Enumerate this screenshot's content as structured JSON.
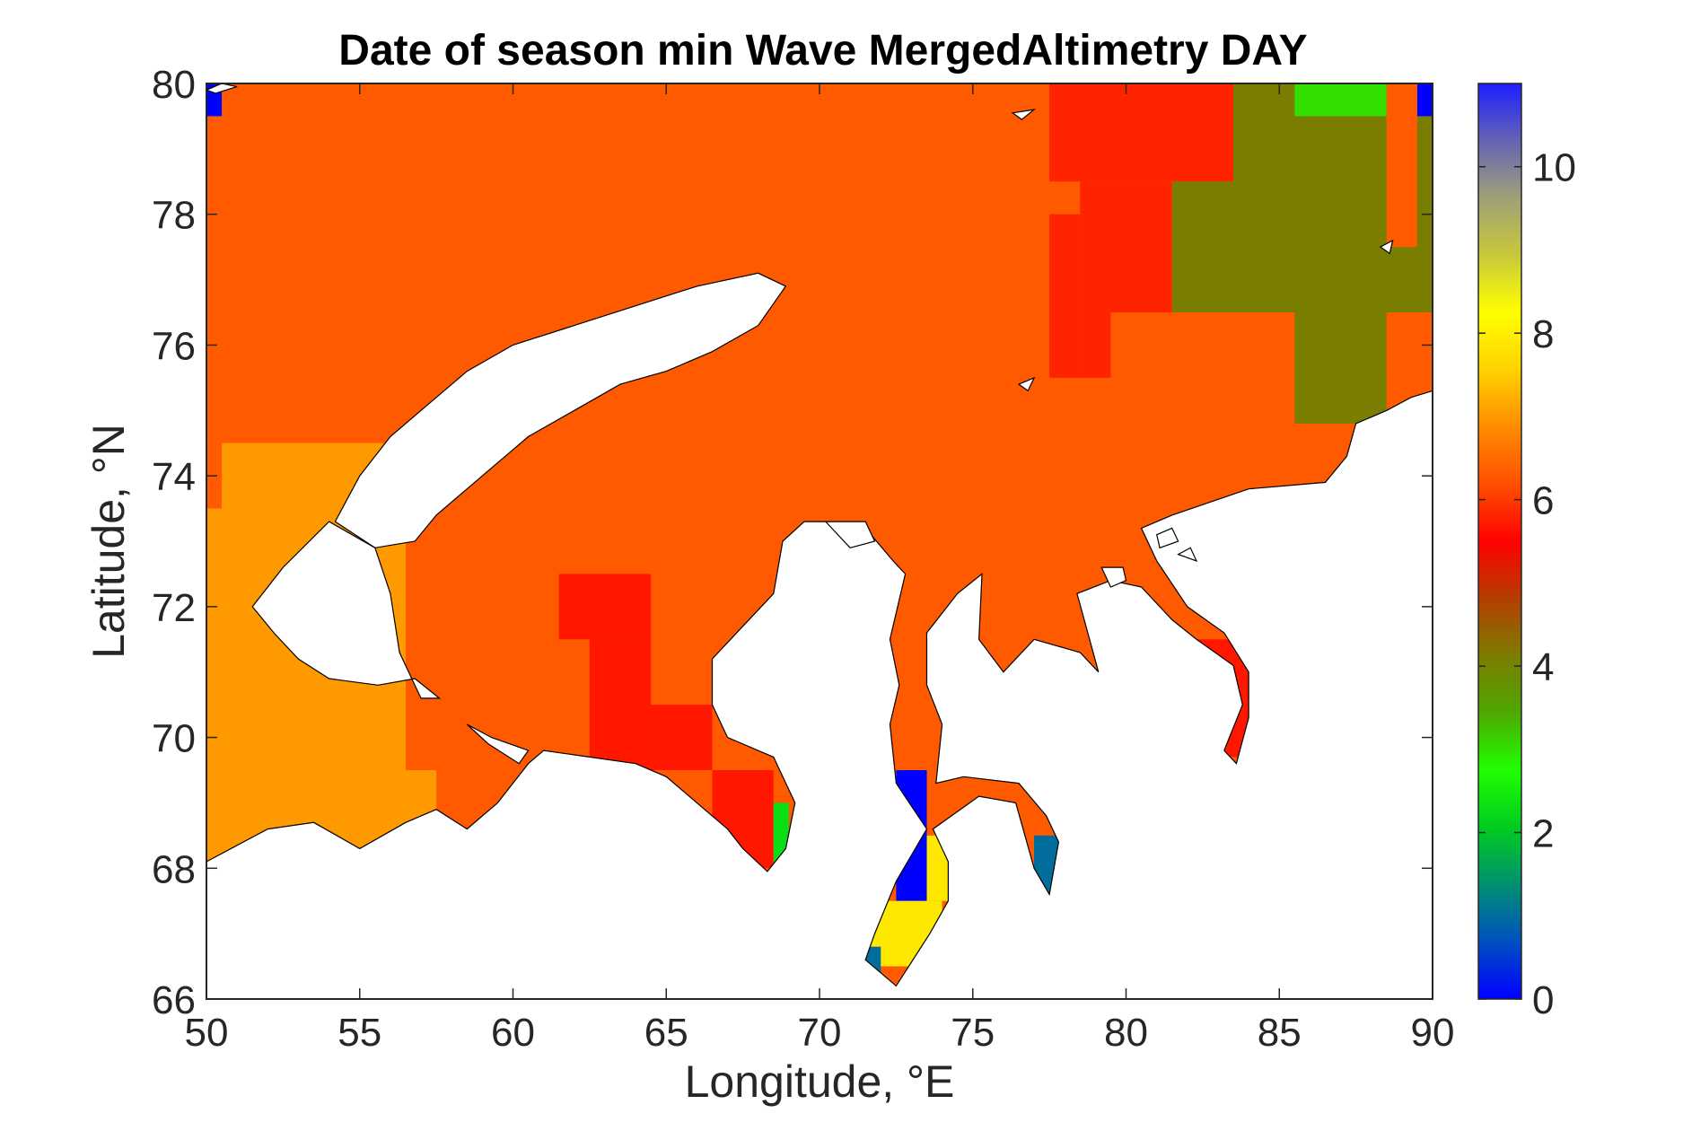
{
  "chart_data": {
    "type": "heatmap",
    "title": "Date of season min Wave MergedAltimetry DAY",
    "xlabel": "Longitude, °E",
    "ylabel": "Latitude, °N",
    "xlim": [
      50,
      90
    ],
    "ylim": [
      66,
      80
    ],
    "x_ticks": [
      "50",
      "55",
      "60",
      "65",
      "70",
      "75",
      "80",
      "85",
      "90"
    ],
    "y_ticks": [
      "66",
      "68",
      "70",
      "72",
      "74",
      "76",
      "78",
      "80"
    ],
    "colorbar": {
      "range": [
        0,
        11
      ],
      "ticks": [
        "0",
        "2",
        "4",
        "6",
        "8",
        "10"
      ],
      "colormap": [
        "#0000ff",
        "#0050c0",
        "#009070",
        "#00cc20",
        "#20ff00",
        "#4ea800",
        "#7c7c00",
        "#b43e00",
        "#ff0000",
        "#ff5000",
        "#ff8c00",
        "#ffd200",
        "#ffff00",
        "#c8c83c",
        "#a0a078",
        "#6464b4",
        "#1e1eff"
      ]
    },
    "land_color": "#ffffff",
    "cells": [
      {
        "lon": [
          50.0,
          90.0
        ],
        "lat": [
          66.0,
          80.0
        ],
        "value": 6.3
      },
      {
        "lon": [
          50.0,
          56.5
        ],
        "lat": [
          66.0,
          74.5
        ],
        "value": 7.0
      },
      {
        "lon": [
          56.5,
          57.5
        ],
        "lat": [
          66.0,
          69.5
        ],
        "value": 7.0
      },
      {
        "lon": [
          50.0,
          50.5
        ],
        "lat": [
          73.5,
          74.5
        ],
        "value": 6.3
      },
      {
        "lon": [
          50.0,
          50.5
        ],
        "lat": [
          79.5,
          80.0
        ],
        "value": 0
      },
      {
        "lon": [
          61.5,
          64.5
        ],
        "lat": [
          71.5,
          72.5
        ],
        "value": 5.7
      },
      {
        "lon": [
          62.5,
          64.5
        ],
        "lat": [
          69.5,
          71.5
        ],
        "value": 5.7
      },
      {
        "lon": [
          64.5,
          66.5
        ],
        "lat": [
          69.5,
          70.5
        ],
        "value": 5.7
      },
      {
        "lon": [
          66.5,
          68.5
        ],
        "lat": [
          68.0,
          69.5
        ],
        "value": 5.7
      },
      {
        "lon": [
          68.5,
          69.0
        ],
        "lat": [
          68.0,
          69.0
        ],
        "value": 2.3
      },
      {
        "lon": [
          77.5,
          83.5
        ],
        "lat": [
          78.5,
          80.0
        ],
        "value": 5.8
      },
      {
        "lon": [
          78.5,
          81.5
        ],
        "lat": [
          76.5,
          78.5
        ],
        "value": 5.8
      },
      {
        "lon": [
          77.5,
          78.5
        ],
        "lat": [
          75.5,
          78.0
        ],
        "value": 5.8
      },
      {
        "lon": [
          78.5,
          79.5
        ],
        "lat": [
          75.5,
          76.5
        ],
        "value": 5.8
      },
      {
        "lon": [
          83.5,
          90.0
        ],
        "lat": [
          76.5,
          80.0
        ],
        "value": 4.1
      },
      {
        "lon": [
          81.5,
          83.5
        ],
        "lat": [
          76.5,
          78.5
        ],
        "value": 4.1
      },
      {
        "lon": [
          85.5,
          88.5
        ],
        "lat": [
          74.8,
          76.5
        ],
        "value": 4.1
      },
      {
        "lon": [
          85.5,
          88.5
        ],
        "lat": [
          79.5,
          80.0
        ],
        "value": 3.0
      },
      {
        "lon": [
          89.5,
          90.0
        ],
        "lat": [
          79.5,
          80.0
        ],
        "value": 0
      },
      {
        "lon": [
          88.5,
          89.5
        ],
        "lat": [
          77.5,
          80.0
        ],
        "value": 6.3
      },
      {
        "lon": [
          88.5,
          90.0
        ],
        "lat": [
          75.5,
          76.5
        ],
        "value": 6.3
      },
      {
        "lon": [
          72.5,
          73.5
        ],
        "lat": [
          68.5,
          69.5
        ],
        "value": 0
      },
      {
        "lon": [
          72.5,
          73.5
        ],
        "lat": [
          67.5,
          68.5
        ],
        "value": 0
      },
      {
        "lon": [
          73.5,
          74.5
        ],
        "lat": [
          67.5,
          68.5
        ],
        "value": 7.9
      },
      {
        "lon": [
          71.5,
          74.0
        ],
        "lat": [
          66.5,
          67.5
        ],
        "value": 7.9
      },
      {
        "lon": [
          69.5,
          72.0
        ],
        "lat": [
          66.2,
          66.8
        ],
        "value": 1.0
      },
      {
        "lon": [
          77.0,
          78.5
        ],
        "lat": [
          67.5,
          68.5
        ],
        "value": 1.0
      },
      {
        "lon": [
          82.0,
          84.0
        ],
        "lat": [
          69.7,
          71.5
        ],
        "value": 5.7
      }
    ],
    "land_polygons": [
      {
        "name": "mainland-south",
        "points": [
          [
            50,
            68.1
          ],
          [
            52,
            68.6
          ],
          [
            53.5,
            68.7
          ],
          [
            55,
            68.3
          ],
          [
            56.5,
            68.7
          ],
          [
            57.5,
            68.9
          ],
          [
            58.5,
            68.6
          ],
          [
            59.5,
            69.0
          ],
          [
            60.5,
            69.6
          ],
          [
            61,
            69.8
          ],
          [
            62.5,
            69.7
          ],
          [
            64,
            69.6
          ],
          [
            65,
            69.4
          ],
          [
            66,
            69.0
          ],
          [
            67,
            68.6
          ],
          [
            67.5,
            68.3
          ],
          [
            68.3,
            67.95
          ],
          [
            68.9,
            68.3
          ],
          [
            69.2,
            69.0
          ],
          [
            68.5,
            69.7
          ],
          [
            67,
            70.0
          ],
          [
            66.5,
            70.5
          ],
          [
            66.5,
            71.2
          ],
          [
            67.5,
            71.7
          ],
          [
            68.5,
            72.2
          ],
          [
            68.8,
            73.0
          ],
          [
            69.5,
            73.3
          ],
          [
            70.5,
            73.3
          ],
          [
            71.5,
            73.2
          ],
          [
            72.4,
            72.7
          ],
          [
            72.8,
            72.5
          ],
          [
            72.3,
            71.5
          ],
          [
            72.6,
            70.8
          ],
          [
            72.3,
            70.2
          ],
          [
            72.5,
            69.3
          ],
          [
            73.5,
            68.6
          ],
          [
            72.5,
            67.8
          ],
          [
            71.8,
            67.0
          ],
          [
            71.5,
            66.6
          ],
          [
            72.5,
            66.2
          ],
          [
            73.6,
            67.0
          ],
          [
            74.2,
            67.5
          ],
          [
            74.2,
            68.1
          ],
          [
            73.7,
            68.6
          ],
          [
            75.2,
            69.1
          ],
          [
            76.4,
            69.0
          ],
          [
            77.0,
            68.0
          ],
          [
            77.5,
            67.6
          ],
          [
            77.8,
            68.4
          ],
          [
            77.4,
            68.8
          ],
          [
            76.5,
            69.3
          ],
          [
            74.7,
            69.4
          ],
          [
            73.8,
            69.3
          ],
          [
            74.0,
            70.2
          ],
          [
            73.5,
            70.8
          ],
          [
            73.5,
            71.6
          ],
          [
            74.5,
            72.2
          ],
          [
            75.3,
            72.5
          ],
          [
            75.2,
            71.5
          ],
          [
            76.0,
            71.0
          ],
          [
            77.0,
            71.5
          ],
          [
            78.5,
            71.3
          ],
          [
            79.1,
            71.0
          ],
          [
            78.4,
            72.2
          ],
          [
            79.5,
            72.4
          ],
          [
            80.5,
            72.3
          ],
          [
            81.5,
            71.8
          ],
          [
            82.3,
            71.5
          ],
          [
            83.5,
            71.1
          ],
          [
            83.8,
            70.5
          ],
          [
            83.2,
            69.8
          ],
          [
            83.6,
            69.6
          ],
          [
            84.0,
            70.3
          ],
          [
            84.0,
            71.0
          ],
          [
            83.2,
            71.6
          ],
          [
            82.0,
            72.0
          ],
          [
            81.0,
            72.7
          ],
          [
            80.5,
            73.2
          ],
          [
            81.5,
            73.4
          ],
          [
            84.0,
            73.8
          ],
          [
            86.5,
            73.9
          ],
          [
            87.2,
            74.3
          ],
          [
            87.5,
            74.8
          ],
          [
            88.5,
            75.0
          ],
          [
            89.3,
            75.2
          ],
          [
            90,
            75.3
          ],
          [
            90,
            66
          ],
          [
            50,
            66
          ]
        ]
      },
      {
        "name": "novaya-zemlya-north",
        "points": [
          [
            54.2,
            73.3
          ],
          [
            55.0,
            74.0
          ],
          [
            56.0,
            74.6
          ],
          [
            57.0,
            75.0
          ],
          [
            58.5,
            75.6
          ],
          [
            60.0,
            76.0
          ],
          [
            62.0,
            76.3
          ],
          [
            64.0,
            76.6
          ],
          [
            66.0,
            76.9
          ],
          [
            68.0,
            77.1
          ],
          [
            68.9,
            76.9
          ],
          [
            68.0,
            76.3
          ],
          [
            66.5,
            75.9
          ],
          [
            65.0,
            75.6
          ],
          [
            63.5,
            75.4
          ],
          [
            62.0,
            75.0
          ],
          [
            60.5,
            74.6
          ],
          [
            59.5,
            74.2
          ],
          [
            58.5,
            73.8
          ],
          [
            57.5,
            73.4
          ],
          [
            56.8,
            73.0
          ],
          [
            55.5,
            72.9
          ]
        ]
      },
      {
        "name": "novaya-zemlya-south",
        "points": [
          [
            51.5,
            72.0
          ],
          [
            52.5,
            72.6
          ],
          [
            54.0,
            73.3
          ],
          [
            55.5,
            72.9
          ],
          [
            56.0,
            72.2
          ],
          [
            56.3,
            71.3
          ],
          [
            57.0,
            70.6
          ],
          [
            57.6,
            70.6
          ],
          [
            56.8,
            70.9
          ],
          [
            55.6,
            70.8
          ],
          [
            54.0,
            70.9
          ],
          [
            53.0,
            71.2
          ],
          [
            52.2,
            71.6
          ]
        ]
      },
      {
        "name": "vaygach-island",
        "points": [
          [
            58.5,
            70.2
          ],
          [
            59.3,
            70.0
          ],
          [
            60.5,
            69.8
          ],
          [
            60.2,
            69.6
          ],
          [
            59.2,
            69.9
          ]
        ]
      },
      {
        "name": "bely-island",
        "points": [
          [
            70.2,
            73.3
          ],
          [
            71.5,
            73.3
          ],
          [
            71.8,
            73.0
          ],
          [
            71.0,
            72.9
          ]
        ]
      },
      {
        "name": "sibiryakov-island",
        "points": [
          [
            79.2,
            72.6
          ],
          [
            79.9,
            72.6
          ],
          [
            80.0,
            72.4
          ],
          [
            79.5,
            72.3
          ]
        ]
      },
      {
        "name": "taymyr-islet-a",
        "points": [
          [
            81.0,
            73.1
          ],
          [
            81.5,
            73.2
          ],
          [
            81.7,
            73.0
          ],
          [
            81.1,
            72.9
          ]
        ]
      },
      {
        "name": "taymyr-islet-b",
        "points": [
          [
            81.7,
            72.8
          ],
          [
            82.1,
            72.9
          ],
          [
            82.3,
            72.7
          ]
        ]
      },
      {
        "name": "islet-c",
        "points": [
          [
            76.5,
            75.4
          ],
          [
            77.0,
            75.5
          ],
          [
            76.8,
            75.3
          ]
        ]
      },
      {
        "name": "islet-d",
        "points": [
          [
            88.3,
            77.5
          ],
          [
            88.7,
            77.6
          ],
          [
            88.6,
            77.4
          ]
        ]
      },
      {
        "name": "franz-josef-edge",
        "points": [
          [
            50.0,
            79.9
          ],
          [
            50.5,
            80.0
          ],
          [
            51.0,
            79.95
          ],
          [
            50.3,
            79.85
          ]
        ]
      },
      {
        "name": "ushakov-area-islet",
        "points": [
          [
            76.3,
            79.55
          ],
          [
            77.0,
            79.6
          ],
          [
            76.6,
            79.45
          ]
        ]
      }
    ]
  }
}
